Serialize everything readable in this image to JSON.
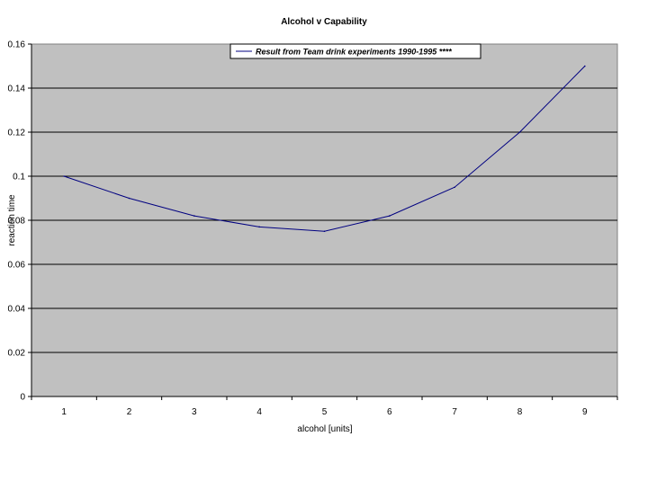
{
  "chart_data": {
    "type": "line",
    "title": "Alcohol v Capability",
    "xlabel": "alcohol [units]",
    "ylabel": "reaction time",
    "categories": [
      "1",
      "2",
      "3",
      "4",
      "5",
      "6",
      "7",
      "8",
      "9"
    ],
    "series": [
      {
        "name": "Result from Team drink experiments 1990-1995 ****",
        "values": [
          0.1,
          0.09,
          0.082,
          0.077,
          0.075,
          0.082,
          0.095,
          0.12,
          0.15
        ],
        "color": "#000080"
      }
    ],
    "ylim": [
      0,
      0.16
    ],
    "yticks": [
      "0",
      "0.02",
      "0.04",
      "0.06",
      "0.08",
      "0.1",
      "0.12",
      "0.14",
      "0.16"
    ],
    "grid": true,
    "legend_position": "top-center",
    "plot_background": "#c0c0c0"
  }
}
